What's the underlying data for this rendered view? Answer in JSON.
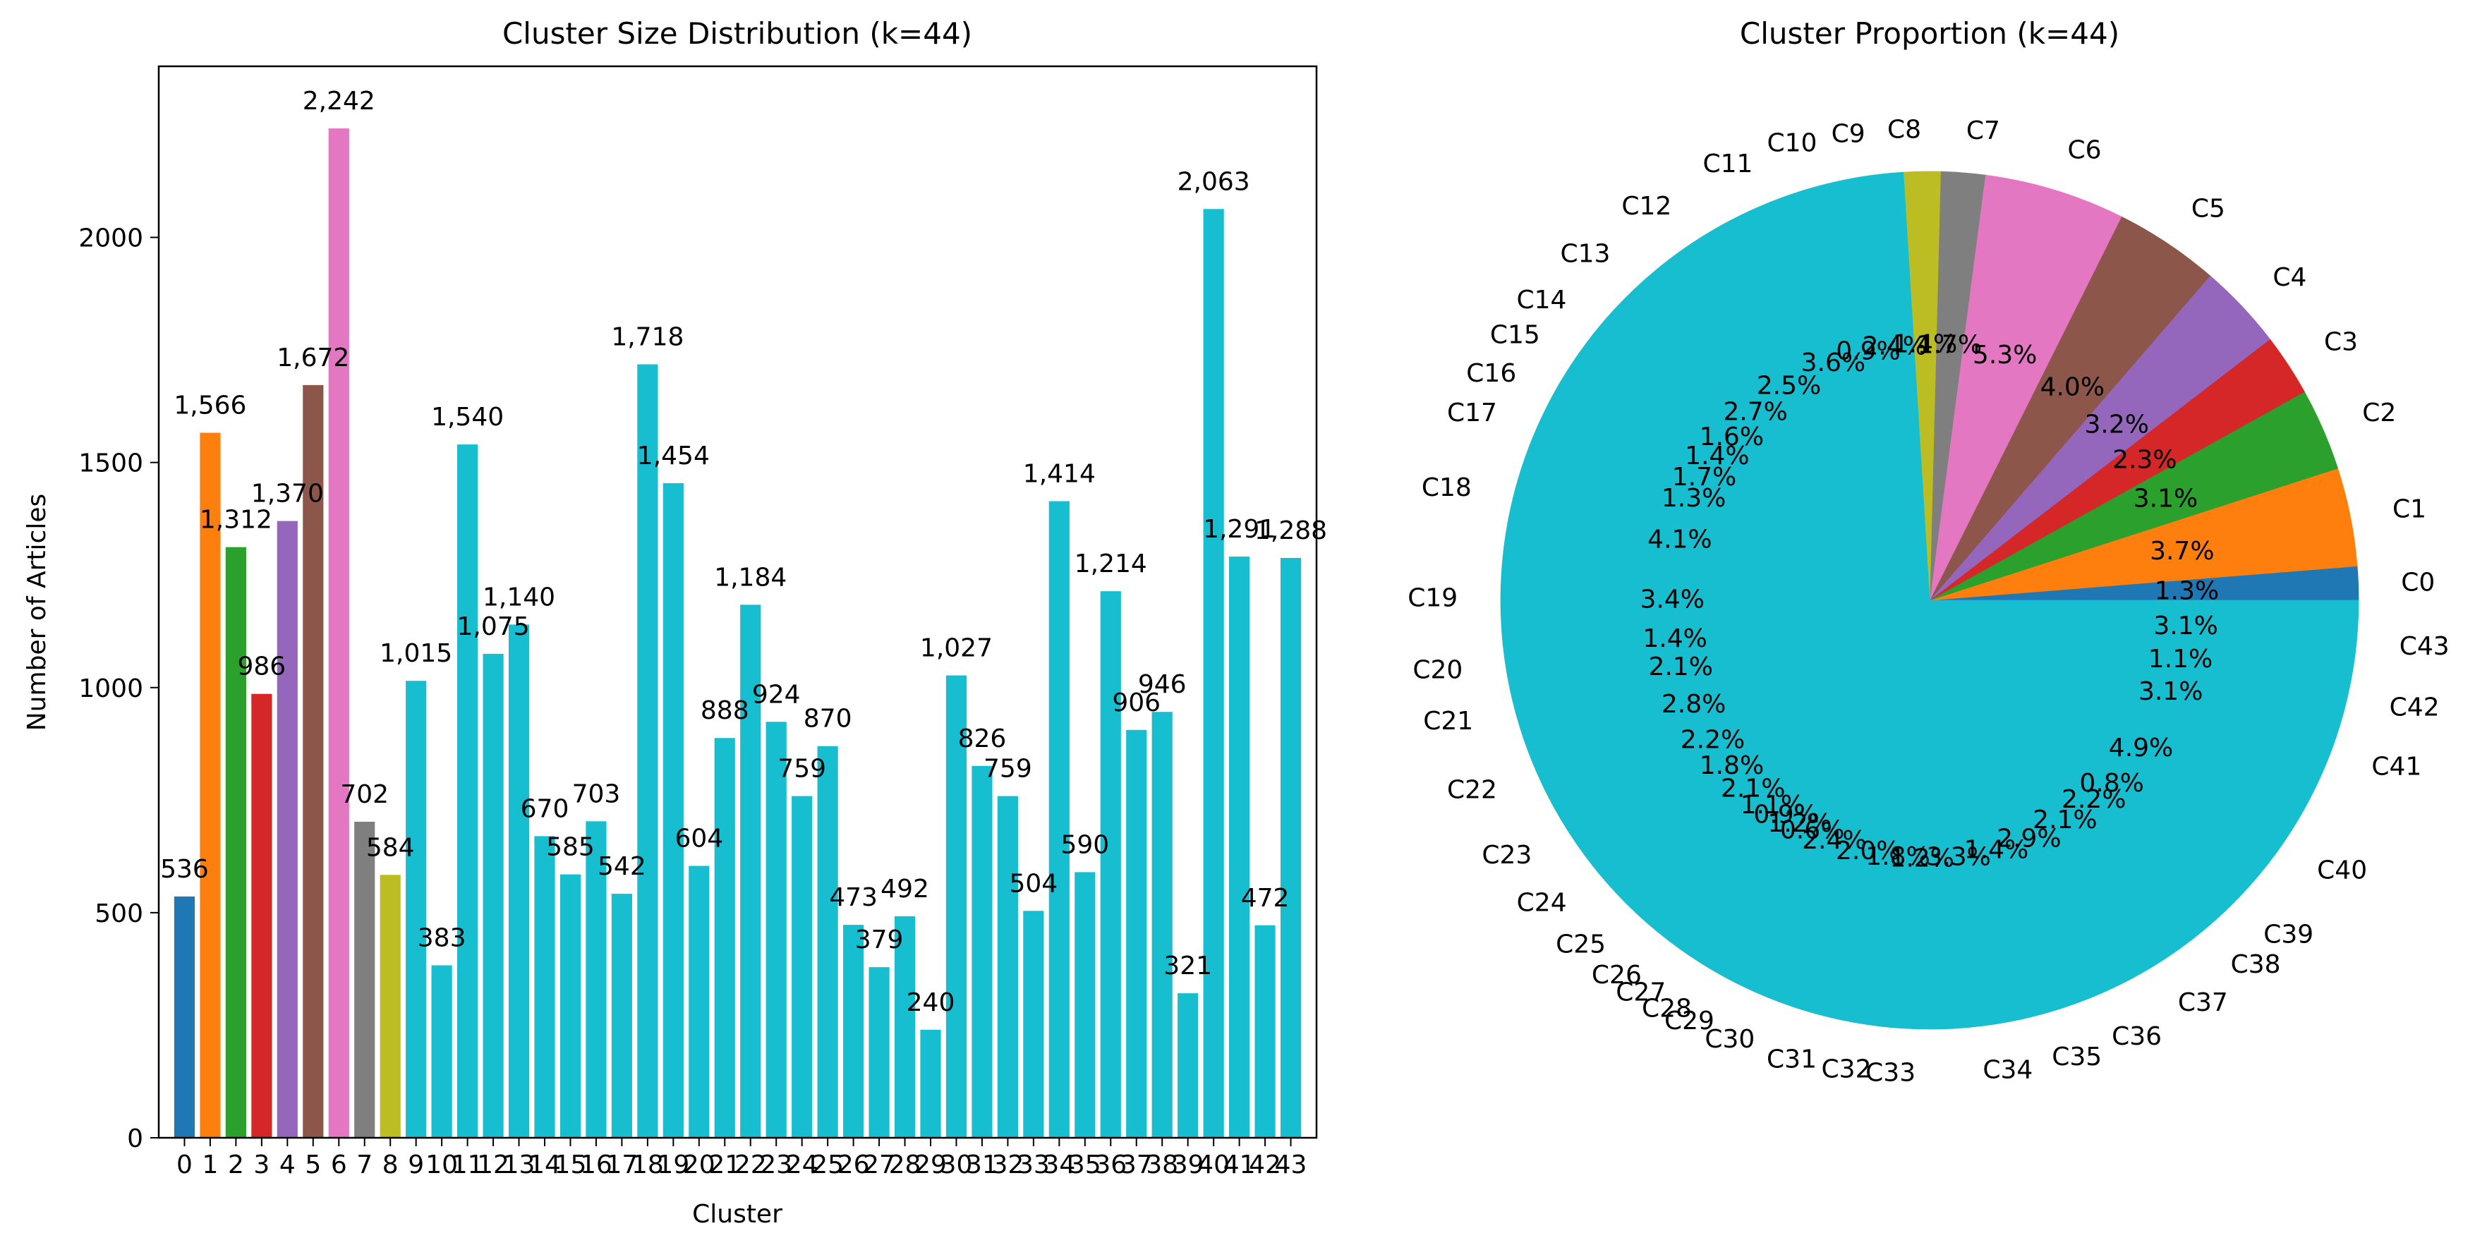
{
  "chart_data": [
    {
      "type": "bar",
      "title": "Cluster Size Distribution (k=44)",
      "xlabel": "Cluster",
      "ylabel": "Number of Articles",
      "ylim": [
        0,
        2380
      ],
      "yticks": [
        0,
        500,
        1000,
        1500,
        2000
      ],
      "grid": false,
      "categories": [
        "0",
        "1",
        "2",
        "3",
        "4",
        "5",
        "6",
        "7",
        "8",
        "9",
        "10",
        "11",
        "12",
        "13",
        "14",
        "15",
        "16",
        "17",
        "18",
        "19",
        "20",
        "21",
        "22",
        "23",
        "24",
        "25",
        "26",
        "27",
        "28",
        "29",
        "30",
        "31",
        "32",
        "33",
        "34",
        "35",
        "36",
        "37",
        "38",
        "39",
        "40",
        "41",
        "42",
        "43"
      ],
      "values": [
        536,
        1566,
        1312,
        986,
        1370,
        1672,
        2242,
        702,
        584,
        1015,
        383,
        1540,
        1075,
        1140,
        670,
        585,
        703,
        542,
        1718,
        1454,
        604,
        888,
        1184,
        924,
        759,
        870,
        473,
        379,
        492,
        240,
        1027,
        826,
        759,
        504,
        1414,
        590,
        1214,
        906,
        946,
        321,
        2063,
        1291,
        472,
        1288
      ],
      "value_labels": [
        "536",
        "1,566",
        "1,312",
        "986",
        "1,370",
        "1,672",
        "2,242",
        "702",
        "584",
        "1,015",
        "383",
        "1,540",
        "1,075",
        "1,140",
        "670",
        "585",
        "703",
        "542",
        "1,718",
        "1,454",
        "604",
        "888",
        "1,184",
        "924",
        "759",
        "870",
        "473",
        "379",
        "492",
        "240",
        "1,027",
        "826",
        "759",
        "504",
        "1,414",
        "590",
        "1,214",
        "906",
        "946",
        "321",
        "2,063",
        "1,291",
        "472",
        "1,288"
      ],
      "colors": [
        "#1f77b4",
        "#ff7f0e",
        "#2ca02c",
        "#d62728",
        "#9467bd",
        "#8c564b",
        "#e377c2",
        "#7f7f7f",
        "#bcbd22",
        "#17becf"
      ]
    },
    {
      "type": "pie",
      "title": "Cluster Proportion (k=44)",
      "labels": [
        "C0",
        "C1",
        "C2",
        "C3",
        "C4",
        "C5",
        "C6",
        "C7",
        "C8",
        "C9",
        "C10",
        "C11",
        "C12",
        "C13",
        "C14",
        "C15",
        "C16",
        "C17",
        "C18",
        "C19",
        "C20",
        "C21",
        "C22",
        "C23",
        "C24",
        "C25",
        "C26",
        "C27",
        "C28",
        "C29",
        "C30",
        "C31",
        "C32",
        "C33",
        "C34",
        "C35",
        "C36",
        "C37",
        "C38",
        "C39",
        "C40",
        "C41",
        "C42",
        "C43"
      ],
      "values": [
        536,
        1566,
        1312,
        986,
        1370,
        1672,
        2242,
        702,
        584,
        1015,
        383,
        1540,
        1075,
        1140,
        670,
        585,
        703,
        542,
        1718,
        1454,
        604,
        888,
        1184,
        924,
        759,
        870,
        473,
        379,
        492,
        240,
        1027,
        826,
        759,
        504,
        1414,
        590,
        1214,
        906,
        946,
        321,
        2063,
        1291,
        472,
        1288
      ],
      "pct_labels": [
        "1.3%",
        "3.7%",
        "3.1%",
        "2.3%",
        "3.2%",
        "4.0%",
        "5.3%",
        "1.7%",
        "1.4%",
        "2.4%",
        "0.9%",
        "3.6%",
        "2.5%",
        "2.7%",
        "1.6%",
        "1.4%",
        "1.7%",
        "1.3%",
        "4.1%",
        "3.4%",
        "1.4%",
        "2.1%",
        "2.8%",
        "2.2%",
        "1.8%",
        "2.1%",
        "1.1%",
        "0.9%",
        "1.2%",
        "0.6%",
        "2.4%",
        "2.0%",
        "1.8%",
        "1.2%",
        "3.3%",
        "1.4%",
        "2.9%",
        "2.1%",
        "2.2%",
        "0.8%",
        "4.9%",
        "3.1%",
        "1.1%",
        "3.1%"
      ],
      "start_angle": 0,
      "counterclockwise": true,
      "colors": [
        "#1f77b4",
        "#ff7f0e",
        "#2ca02c",
        "#d62728",
        "#9467bd",
        "#8c564b",
        "#e377c2",
        "#7f7f7f",
        "#bcbd22",
        "#17becf"
      ]
    }
  ]
}
